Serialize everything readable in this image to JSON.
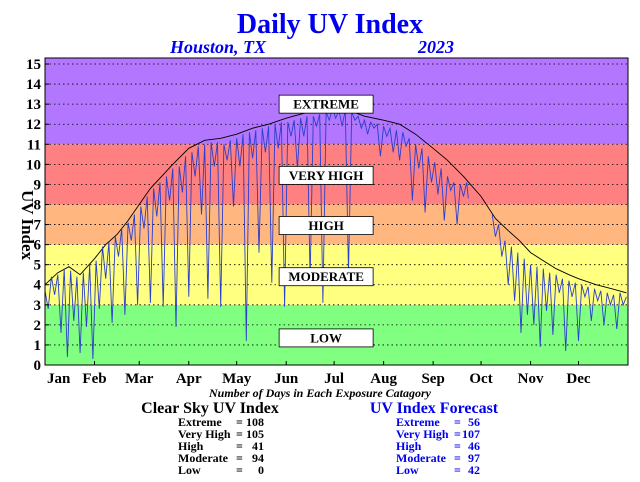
{
  "colors": {
    "title": "#0000ee",
    "extreme_band": "#b377ff",
    "very_high_band": "#ff8080",
    "high_band": "#ffb77f",
    "moderate_band": "#ffff80",
    "low_band": "#80ff80",
    "clear_sky_line": "#000000",
    "forecast_line": "#2b3fcf"
  },
  "chart_data": {
    "type": "line",
    "title": "Daily UV Index",
    "location": "Houston, TX",
    "year": "2023",
    "ylabel": "UV Index",
    "ylim": [
      0,
      15
    ],
    "yticks": [
      "0",
      "1",
      "2",
      "3",
      "4",
      "5",
      "6",
      "7",
      "8",
      "9",
      "10",
      "11",
      "12",
      "13",
      "14",
      "15"
    ],
    "xlim": [
      0,
      365
    ],
    "months": [
      {
        "label": "Jan",
        "day": 0
      },
      {
        "label": "Feb",
        "day": 31
      },
      {
        "label": "Mar",
        "day": 59
      },
      {
        "label": "Apr",
        "day": 90
      },
      {
        "label": "May",
        "day": 120
      },
      {
        "label": "Jun",
        "day": 151
      },
      {
        "label": "Jul",
        "day": 181
      },
      {
        "label": "Aug",
        "day": 212
      },
      {
        "label": "Sep",
        "day": 243
      },
      {
        "label": "Oct",
        "day": 273
      },
      {
        "label": "Nov",
        "day": 304
      },
      {
        "label": "Dec",
        "day": 334
      }
    ],
    "bands": [
      {
        "label": "LOW",
        "from": 0,
        "to": 3,
        "color": "#80ff80",
        "label_at": 1.35
      },
      {
        "label": "MODERATE",
        "from": 3,
        "to": 6,
        "color": "#ffff80",
        "label_at": 4.4
      },
      {
        "label": "HIGH",
        "from": 6,
        "to": 8,
        "color": "#ffb77f",
        "label_at": 6.95
      },
      {
        "label": "VERY HIGH",
        "from": 8,
        "to": 11,
        "color": "#ff8080",
        "label_at": 9.45
      },
      {
        "label": "EXTREME",
        "from": 11,
        "to": 16,
        "color": "#b377ff",
        "label_at": 13.0
      }
    ],
    "grid": true,
    "series": [
      {
        "name": "Clear Sky UV Index",
        "color": "#000000",
        "points": [
          [
            0,
            4.0
          ],
          [
            8,
            4.6
          ],
          [
            15,
            4.9
          ],
          [
            22,
            4.5
          ],
          [
            31,
            5.3
          ],
          [
            38,
            6.0
          ],
          [
            45,
            6.5
          ],
          [
            52,
            7.2
          ],
          [
            59,
            8.0
          ],
          [
            66,
            8.8
          ],
          [
            73,
            9.4
          ],
          [
            80,
            10.0
          ],
          [
            90,
            10.8
          ],
          [
            100,
            11.2
          ],
          [
            110,
            11.3
          ],
          [
            120,
            11.5
          ],
          [
            130,
            11.8
          ],
          [
            140,
            12.0
          ],
          [
            151,
            12.3
          ],
          [
            160,
            12.5
          ],
          [
            170,
            12.7
          ],
          [
            181,
            12.8
          ],
          [
            190,
            12.7
          ],
          [
            200,
            12.4
          ],
          [
            212,
            12.2
          ],
          [
            222,
            12.0
          ],
          [
            232,
            11.5
          ],
          [
            243,
            10.8
          ],
          [
            252,
            10.2
          ],
          [
            262,
            9.4
          ],
          [
            273,
            8.4
          ],
          [
            282,
            7.3
          ],
          [
            290,
            6.7
          ],
          [
            297,
            6.2
          ],
          [
            304,
            5.6
          ],
          [
            312,
            5.2
          ],
          [
            320,
            4.8
          ],
          [
            328,
            4.5
          ],
          [
            334,
            4.3
          ],
          [
            345,
            4.0
          ],
          [
            355,
            3.8
          ],
          [
            364,
            3.6
          ]
        ]
      },
      {
        "name": "UV Index Forecast",
        "color": "#2b3fcf",
        "points": [
          [
            0,
            3.7
          ],
          [
            2,
            2.8
          ],
          [
            4,
            4.4
          ],
          [
            6,
            3.5
          ],
          [
            8,
            4.5
          ],
          [
            10,
            1.6
          ],
          [
            12,
            4.8
          ],
          [
            14,
            0.4
          ],
          [
            16,
            4.7
          ],
          [
            18,
            2.2
          ],
          [
            20,
            4.4
          ],
          [
            22,
            0.6
          ],
          [
            24,
            4.6
          ],
          [
            26,
            1.9
          ],
          [
            28,
            5.0
          ],
          [
            30,
            0.3
          ],
          [
            32,
            5.2
          ],
          [
            34,
            2.8
          ],
          [
            36,
            5.9
          ],
          [
            38,
            4.3
          ],
          [
            40,
            6.1
          ],
          [
            42,
            2.1
          ],
          [
            44,
            6.4
          ],
          [
            46,
            5.4
          ],
          [
            48,
            6.8
          ],
          [
            50,
            2.5
          ],
          [
            52,
            7.1
          ],
          [
            54,
            6.2
          ],
          [
            56,
            7.5
          ],
          [
            58,
            3.0
          ],
          [
            60,
            7.9
          ],
          [
            62,
            6.8
          ],
          [
            64,
            8.4
          ],
          [
            66,
            3.1
          ],
          [
            68,
            8.8
          ],
          [
            70,
            7.4
          ],
          [
            72,
            9.1
          ],
          [
            74,
            2.9
          ],
          [
            76,
            9.4
          ],
          [
            78,
            8.2
          ],
          [
            80,
            9.8
          ],
          [
            82,
            1.9
          ],
          [
            84,
            9.9
          ],
          [
            86,
            8.6
          ],
          [
            88,
            10.4
          ],
          [
            90,
            3.4
          ],
          [
            92,
            10.6
          ],
          [
            94,
            9.4
          ],
          [
            96,
            10.9
          ],
          [
            98,
            7.5
          ],
          [
            100,
            11.0
          ],
          [
            102,
            3.3
          ],
          [
            104,
            11.1
          ],
          [
            106,
            9.9
          ],
          [
            108,
            11.1
          ],
          [
            110,
            2.9
          ],
          [
            112,
            11.0
          ],
          [
            114,
            10.2
          ],
          [
            116,
            11.2
          ],
          [
            118,
            7.9
          ],
          [
            120,
            11.3
          ],
          [
            122,
            9.9
          ],
          [
            124,
            11.5
          ],
          [
            126,
            1.2
          ],
          [
            128,
            11.6
          ],
          [
            130,
            10.3
          ],
          [
            132,
            11.7
          ],
          [
            134,
            5.6
          ],
          [
            136,
            11.8
          ],
          [
            138,
            10.6
          ],
          [
            140,
            11.9
          ],
          [
            142,
            4.1
          ],
          [
            144,
            12.0
          ],
          [
            146,
            10.8
          ],
          [
            148,
            12.1
          ],
          [
            150,
            2.9
          ],
          [
            152,
            12.1
          ],
          [
            154,
            11.4
          ],
          [
            156,
            12.2
          ],
          [
            158,
            9.8
          ],
          [
            160,
            12.3
          ],
          [
            162,
            11.4
          ],
          [
            164,
            12.4
          ],
          [
            166,
            4.3
          ],
          [
            168,
            12.4
          ],
          [
            170,
            11.9
          ],
          [
            172,
            12.5
          ],
          [
            174,
            3.1
          ],
          [
            176,
            12.6
          ],
          [
            178,
            12.2
          ],
          [
            180,
            12.8
          ],
          [
            182,
            12.3
          ],
          [
            184,
            12.7
          ],
          [
            186,
            11.9
          ],
          [
            188,
            12.7
          ],
          [
            190,
            4.6
          ],
          [
            192,
            12.6
          ],
          [
            194,
            12.2
          ],
          [
            196,
            12.4
          ],
          [
            198,
            11.8
          ],
          [
            200,
            12.2
          ],
          [
            202,
            11.5
          ],
          [
            204,
            12.1
          ],
          [
            206,
            11.8
          ],
          [
            208,
            12.0
          ],
          [
            210,
            10.4
          ],
          [
            212,
            11.9
          ],
          [
            214,
            11.4
          ],
          [
            216,
            11.8
          ],
          [
            218,
            10.6
          ],
          [
            220,
            11.7
          ],
          [
            222,
            10.2
          ],
          [
            224,
            11.6
          ],
          [
            226,
            10.9
          ],
          [
            228,
            11.3
          ],
          [
            230,
            8.2
          ],
          [
            232,
            11.0
          ],
          [
            234,
            9.8
          ],
          [
            236,
            10.8
          ],
          [
            238,
            7.6
          ],
          [
            240,
            10.4
          ],
          [
            242,
            9.1
          ],
          [
            244,
            10.1
          ],
          [
            246,
            8.5
          ],
          [
            248,
            9.8
          ],
          [
            250,
            7.2
          ],
          [
            252,
            9.4
          ],
          [
            254,
            8.7
          ],
          [
            256,
            9.1
          ],
          [
            258,
            7.0
          ],
          [
            260,
            9.0
          ],
          [
            262,
            8.4
          ],
          [
            264,
            9.1
          ],
          [
            265,
            8.3
          ]
        ]
      },
      {
        "name": "UV Index Forecast (late)",
        "color": "#2b3fcf",
        "points": [
          [
            280,
            7.5
          ],
          [
            282,
            6.4
          ],
          [
            284,
            7.0
          ],
          [
            286,
            5.4
          ],
          [
            288,
            6.2
          ],
          [
            290,
            4.0
          ],
          [
            292,
            5.9
          ],
          [
            294,
            3.2
          ],
          [
            296,
            5.6
          ],
          [
            298,
            1.6
          ],
          [
            300,
            5.3
          ],
          [
            302,
            2.5
          ],
          [
            304,
            5.0
          ],
          [
            306,
            2.0
          ],
          [
            308,
            4.9
          ],
          [
            310,
            0.9
          ],
          [
            312,
            4.8
          ],
          [
            314,
            2.7
          ],
          [
            316,
            4.6
          ],
          [
            318,
            1.5
          ],
          [
            320,
            4.5
          ],
          [
            322,
            3.6
          ],
          [
            324,
            4.3
          ],
          [
            326,
            0.7
          ],
          [
            328,
            4.2
          ],
          [
            330,
            3.4
          ],
          [
            332,
            4.1
          ],
          [
            334,
            1.2
          ],
          [
            336,
            4.0
          ],
          [
            338,
            3.4
          ],
          [
            340,
            3.9
          ],
          [
            342,
            2.2
          ],
          [
            344,
            3.8
          ],
          [
            346,
            3.2
          ],
          [
            348,
            3.7
          ],
          [
            350,
            2.0
          ],
          [
            352,
            3.6
          ],
          [
            354,
            3.0
          ],
          [
            356,
            3.5
          ],
          [
            358,
            1.8
          ],
          [
            360,
            3.6
          ],
          [
            362,
            3.0
          ],
          [
            364,
            3.4
          ]
        ]
      }
    ]
  },
  "stats": {
    "caption": "Number of Days in Each Exposure Catagory",
    "clear_sky": {
      "title": "Clear Sky UV Index",
      "rows": [
        {
          "label": "Extreme",
          "eq": "=",
          "value": "108"
        },
        {
          "label": "Very High",
          "eq": "=",
          "value": "105"
        },
        {
          "label": "High",
          "eq": "=",
          "value": "41"
        },
        {
          "label": "Moderate",
          "eq": "=",
          "value": "94"
        },
        {
          "label": "Low",
          "eq": "=",
          "value": "0"
        }
      ]
    },
    "forecast": {
      "title": "UV Index Forecast",
      "rows": [
        {
          "label": "Extreme",
          "eq": "=",
          "value": "56"
        },
        {
          "label": "Very High",
          "eq": "=",
          "value": "107"
        },
        {
          "label": "High",
          "eq": "=",
          "value": "46"
        },
        {
          "label": "Moderate",
          "eq": "=",
          "value": "97"
        },
        {
          "label": "Low",
          "eq": "=",
          "value": "42"
        }
      ]
    }
  }
}
